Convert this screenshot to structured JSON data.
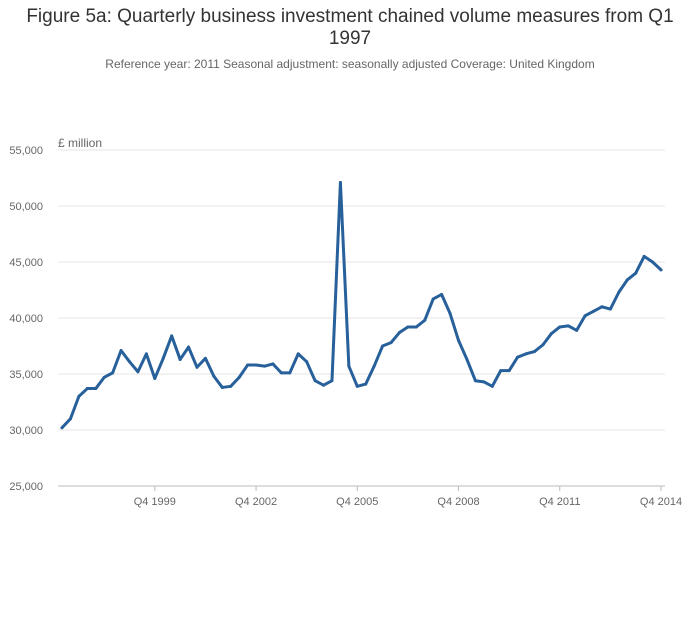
{
  "header": {
    "title": "Figure 5a: Quarterly business investment chained volume measures from Q1 1997",
    "subtitle": "Reference year: 2011 Seasonal adjustment: seasonally adjusted Coverage: United Kingdom"
  },
  "chart_data": {
    "type": "line",
    "title": "Figure 5a: Quarterly business investment chained volume measures from Q1 1997",
    "subtitle": "Reference year: 2011 Seasonal adjustment: seasonally adjusted Coverage: United Kingdom",
    "ylabel": "£ million",
    "xlabel": "",
    "ylim": [
      25000,
      55000
    ],
    "yticks": [
      25000,
      30000,
      35000,
      40000,
      45000,
      50000,
      55000
    ],
    "ytick_labels": [
      "25,000",
      "30,000",
      "35,000",
      "40,000",
      "45,000",
      "50,000",
      "55,000"
    ],
    "xtick_labels": [
      "Q4 1999",
      "Q4 2002",
      "Q4 2005",
      "Q4 2008",
      "Q4 2011",
      "Q4 2014"
    ],
    "xtick_index": [
      11,
      23,
      35,
      47,
      59,
      71
    ],
    "grid": true,
    "legend": false,
    "series_color": "#27609A",
    "categories": [
      "Q1 1997",
      "Q2 1997",
      "Q3 1997",
      "Q4 1997",
      "Q1 1998",
      "Q2 1998",
      "Q3 1998",
      "Q4 1998",
      "Q1 1999",
      "Q2 1999",
      "Q3 1999",
      "Q4 1999",
      "Q1 2000",
      "Q2 2000",
      "Q3 2000",
      "Q4 2000",
      "Q1 2001",
      "Q2 2001",
      "Q3 2001",
      "Q4 2001",
      "Q1 2002",
      "Q2 2002",
      "Q3 2002",
      "Q4 2002",
      "Q1 2003",
      "Q2 2003",
      "Q3 2003",
      "Q4 2003",
      "Q1 2004",
      "Q2 2004",
      "Q3 2004",
      "Q4 2004",
      "Q1 2005",
      "Q2 2005",
      "Q3 2005",
      "Q4 2005",
      "Q1 2006",
      "Q2 2006",
      "Q3 2006",
      "Q4 2006",
      "Q1 2007",
      "Q2 2007",
      "Q3 2007",
      "Q4 2007",
      "Q1 2008",
      "Q2 2008",
      "Q3 2008",
      "Q4 2008",
      "Q1 2009",
      "Q2 2009",
      "Q3 2009",
      "Q4 2009",
      "Q1 2010",
      "Q2 2010",
      "Q3 2010",
      "Q4 2010",
      "Q1 2011",
      "Q2 2011",
      "Q3 2011",
      "Q4 2011",
      "Q1 2012",
      "Q2 2012",
      "Q3 2012",
      "Q4 2012",
      "Q1 2013",
      "Q2 2013",
      "Q3 2013",
      "Q4 2013",
      "Q1 2014",
      "Q2 2014",
      "Q3 2014",
      "Q4 2014"
    ],
    "values": [
      30200,
      31000,
      33000,
      33700,
      33700,
      34700,
      35100,
      37100,
      36100,
      35200,
      36800,
      34600,
      36400,
      38400,
      36300,
      37400,
      35600,
      36400,
      34800,
      33800,
      33900,
      34700,
      35800,
      35800,
      35700,
      35900,
      35100,
      35100,
      36800,
      36100,
      34400,
      34000,
      34400,
      52100,
      35700,
      33900,
      34100,
      35700,
      37500,
      37800,
      38700,
      39200,
      39200,
      39800,
      41700,
      42100,
      40400,
      38000,
      36300,
      34400,
      34300,
      33900,
      35300,
      35300,
      36500,
      36800,
      37000,
      37600,
      38600,
      39200,
      39300,
      38900,
      40200,
      40600,
      41000,
      40800,
      42300,
      43400,
      44000,
      45500,
      45000,
      44300
    ]
  }
}
